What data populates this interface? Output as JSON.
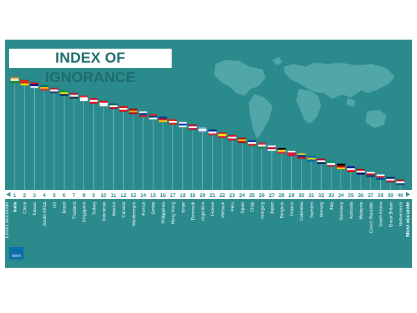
{
  "title": "INDEX OF IGNORANCE",
  "logo_text": "Ipsos",
  "colors": {
    "panel": "#2a8a8c",
    "band": "#ffffff",
    "tick_text": "#2a8a8c",
    "country_text": "#ffffff",
    "logo_bg": "#0a6fa8"
  },
  "chart_data": {
    "type": "rank",
    "title": "INDEX OF IGNORANCE",
    "axis_start_label": "Least accurate",
    "axis_end_label": "Most accurate",
    "ranks": [
      "1",
      "2",
      "3",
      "4",
      "5",
      "6",
      "7",
      "8",
      "9",
      "10",
      "11",
      "12",
      "13",
      "14",
      "15",
      "16",
      "17",
      "18",
      "19",
      "20",
      "21",
      "22",
      "23",
      "24",
      "25",
      "26",
      "27",
      "28",
      "29",
      "30",
      "31",
      "32",
      "33",
      "34",
      "35",
      "36",
      "37",
      "38",
      "39",
      "40"
    ],
    "countries": [
      "India",
      "China",
      "Taiwan",
      "South Africa",
      "US",
      "Brazil",
      "Thailand",
      "Singapore",
      "Turkey",
      "Indonesia",
      "Mexico",
      "Canada",
      "Montenegro",
      "Russia",
      "Serbia",
      "Philippines",
      "Hong Kong",
      "Israel",
      "Denmark",
      "Argentina",
      "France",
      "Vietnam",
      "Peru",
      "Spain",
      "Chile",
      "Hungary",
      "Japan",
      "Belgium",
      "Poland",
      "Colombia",
      "Sweden",
      "Norway",
      "Italy",
      "Germany",
      "Australia",
      "Malaysia",
      "Czech Republic",
      "South Korea",
      "Great Britain",
      "Netherlands"
    ]
  }
}
